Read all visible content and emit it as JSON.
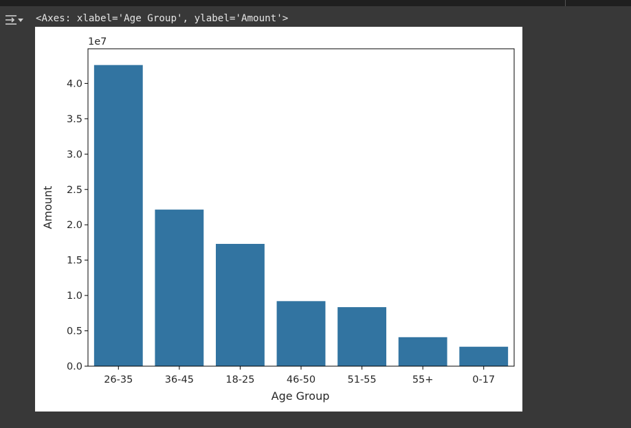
{
  "cell_output": {
    "repr_text": "<Axes: xlabel='Age Group', ylabel='Amount'>"
  },
  "colors": {
    "bar": "#3274a1",
    "background": "#383838"
  },
  "icons": {
    "output_toggle": "collapse-output-icon"
  },
  "chart_data": {
    "type": "bar",
    "xlabel": "Age Group",
    "ylabel": "Amount",
    "offset_text": "1e7",
    "categories": [
      "26-35",
      "36-45",
      "18-25",
      "46-50",
      "51-55",
      "55+",
      "0-17"
    ],
    "values": [
      42600000,
      22150000,
      17300000,
      9200000,
      8350000,
      4100000,
      2750000
    ],
    "ylim": [
      0,
      44900000
    ],
    "yticks": [
      0,
      5000000,
      10000000,
      15000000,
      20000000,
      25000000,
      30000000,
      35000000,
      40000000
    ],
    "ytick_labels": [
      "0.0",
      "0.5",
      "1.0",
      "1.5",
      "2.0",
      "2.5",
      "3.0",
      "3.5",
      "4.0"
    ],
    "grid": false,
    "legend": false
  }
}
